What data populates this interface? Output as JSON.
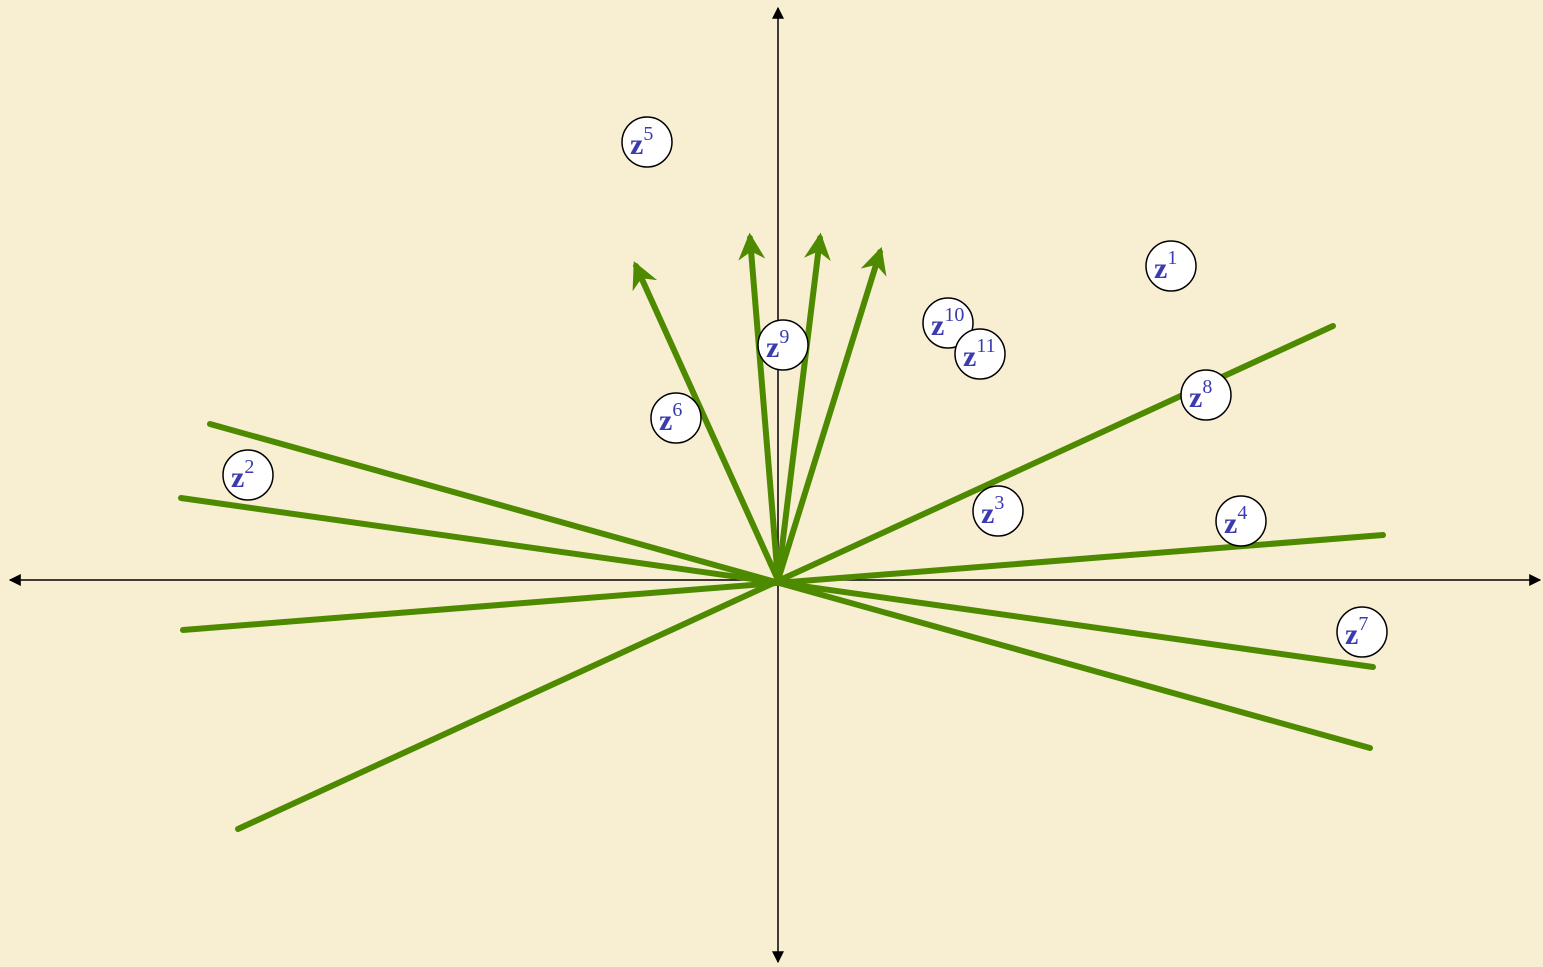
{
  "nodes": [
    {
      "base": "z",
      "sup": "1"
    },
    {
      "base": "z",
      "sup": "2"
    },
    {
      "base": "z",
      "sup": "3"
    },
    {
      "base": "z",
      "sup": "4"
    },
    {
      "base": "z",
      "sup": "5"
    },
    {
      "base": "z",
      "sup": "6"
    },
    {
      "base": "z",
      "sup": "7"
    },
    {
      "base": "z",
      "sup": "8"
    },
    {
      "base": "z",
      "sup": "9"
    },
    {
      "base": "z",
      "sup": "10"
    },
    {
      "base": "z",
      "sup": "11"
    }
  ]
}
